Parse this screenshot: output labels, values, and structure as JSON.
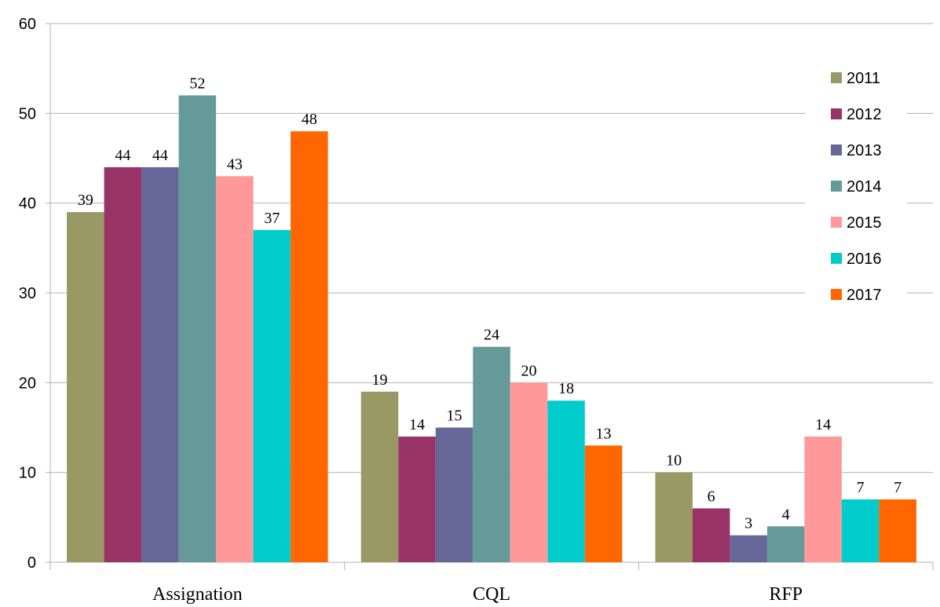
{
  "chart_data": {
    "type": "bar",
    "categories": [
      "Assignation",
      "CQL",
      "RFP"
    ],
    "series": [
      {
        "name": "2011",
        "color": "#999966",
        "values": [
          39,
          19,
          10
        ]
      },
      {
        "name": "2012",
        "color": "#993366",
        "values": [
          44,
          14,
          6
        ]
      },
      {
        "name": "2013",
        "color": "#666699",
        "values": [
          44,
          15,
          3
        ]
      },
      {
        "name": "2014",
        "color": "#669999",
        "values": [
          52,
          24,
          4
        ]
      },
      {
        "name": "2015",
        "color": "#ff9999",
        "values": [
          43,
          20,
          14
        ]
      },
      {
        "name": "2016",
        "color": "#00cccc",
        "values": [
          37,
          18,
          7
        ]
      },
      {
        "name": "2017",
        "color": "#ff6600",
        "values": [
          48,
          13,
          7
        ]
      }
    ],
    "ylim": [
      0,
      60
    ],
    "yticks": [
      0,
      10,
      20,
      30,
      40,
      50,
      60
    ],
    "grid": true,
    "legend": "right",
    "show_data_labels": true
  }
}
